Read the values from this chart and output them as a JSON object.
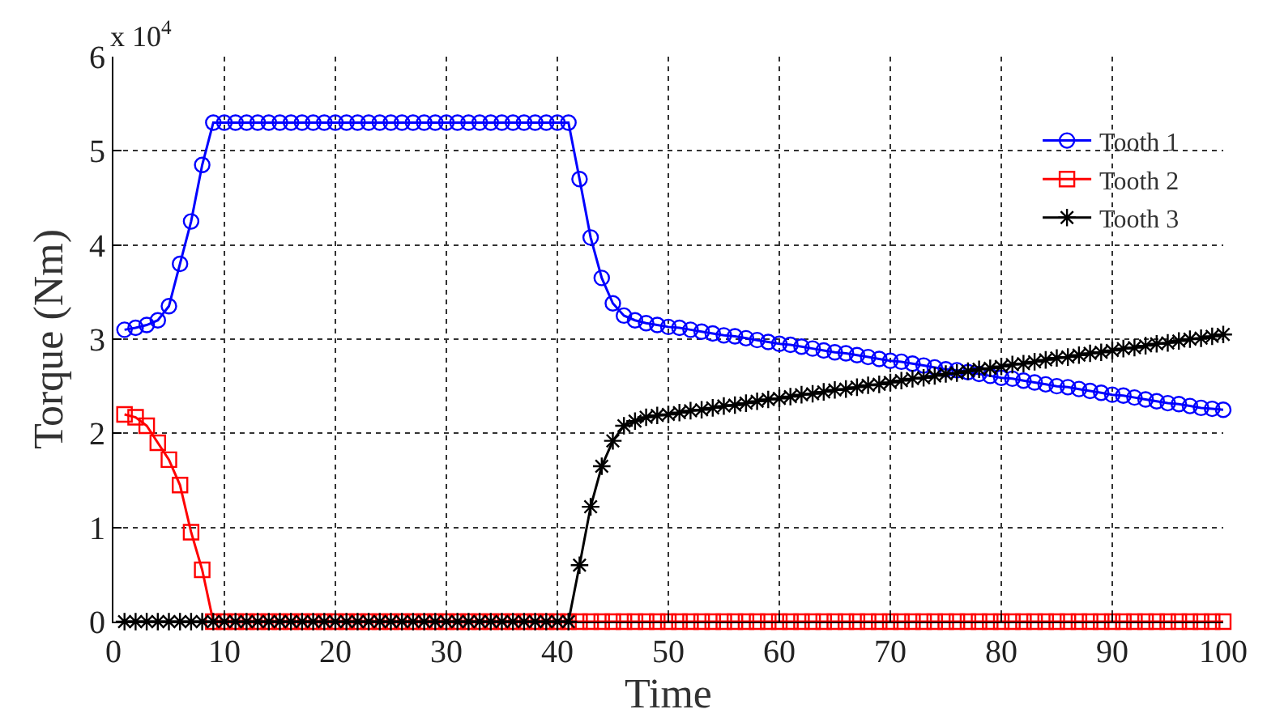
{
  "chart_data": {
    "type": "line",
    "xlabel": "Time",
    "ylabel": "Torque (Nm)",
    "annotations": [
      "x 10$^{4}$"
    ],
    "x": [
      1,
      2,
      3,
      4,
      5,
      6,
      7,
      8,
      9,
      10,
      11,
      12,
      13,
      14,
      15,
      16,
      17,
      18,
      19,
      20,
      21,
      22,
      23,
      24,
      25,
      26,
      27,
      28,
      29,
      30,
      31,
      32,
      33,
      34,
      35,
      36,
      37,
      38,
      39,
      40,
      41,
      42,
      43,
      44,
      45,
      46,
      47,
      48,
      49,
      50,
      51,
      52,
      53,
      54,
      55,
      56,
      57,
      58,
      59,
      60,
      61,
      62,
      63,
      64,
      65,
      66,
      67,
      68,
      69,
      70,
      71,
      72,
      73,
      74,
      75,
      76,
      77,
      78,
      79,
      80,
      81,
      82,
      83,
      84,
      85,
      86,
      87,
      88,
      89,
      90,
      91,
      92,
      93,
      94,
      95,
      96,
      97,
      98,
      99,
      100
    ],
    "series": [
      {
        "name": "Tooth 1",
        "color": "#0000ff",
        "marker": "circle",
        "values": [
          3.1,
          3.12,
          3.15,
          3.2,
          3.35,
          3.8,
          4.25,
          4.85,
          5.3,
          5.3,
          5.3,
          5.3,
          5.3,
          5.3,
          5.3,
          5.3,
          5.3,
          5.3,
          5.3,
          5.3,
          5.3,
          5.3,
          5.3,
          5.3,
          5.3,
          5.3,
          5.3,
          5.3,
          5.3,
          5.3,
          5.3,
          5.3,
          5.3,
          5.3,
          5.3,
          5.3,
          5.3,
          5.3,
          5.3,
          5.3,
          5.3,
          4.7,
          4.08,
          3.65,
          3.38,
          3.25,
          3.2,
          3.17,
          3.15,
          3.13,
          3.12,
          3.1,
          3.08,
          3.06,
          3.04,
          3.03,
          3.01,
          2.99,
          2.97,
          2.95,
          2.94,
          2.92,
          2.9,
          2.88,
          2.86,
          2.85,
          2.83,
          2.81,
          2.79,
          2.77,
          2.76,
          2.74,
          2.72,
          2.7,
          2.68,
          2.67,
          2.65,
          2.63,
          2.61,
          2.59,
          2.58,
          2.56,
          2.54,
          2.52,
          2.5,
          2.49,
          2.47,
          2.45,
          2.43,
          2.41,
          2.4,
          2.38,
          2.36,
          2.34,
          2.32,
          2.31,
          2.29,
          2.27,
          2.26,
          2.25
        ]
      },
      {
        "name": "Tooth 2",
        "color": "#ff0000",
        "marker": "square",
        "values": [
          2.2,
          2.17,
          2.08,
          1.9,
          1.72,
          1.45,
          0.95,
          0.55,
          0,
          0,
          0,
          0,
          0,
          0,
          0,
          0,
          0,
          0,
          0,
          0,
          0,
          0,
          0,
          0,
          0,
          0,
          0,
          0,
          0,
          0,
          0,
          0,
          0,
          0,
          0,
          0,
          0,
          0,
          0,
          0,
          0,
          0,
          0,
          0,
          0,
          0,
          0,
          0,
          0,
          0,
          0,
          0,
          0,
          0,
          0,
          0,
          0,
          0,
          0,
          0,
          0,
          0,
          0,
          0,
          0,
          0,
          0,
          0,
          0,
          0,
          0,
          0,
          0,
          0,
          0,
          0,
          0,
          0,
          0,
          0,
          0,
          0,
          0,
          0,
          0,
          0,
          0,
          0,
          0,
          0,
          0,
          0,
          0,
          0,
          0,
          0,
          0,
          0,
          0,
          0
        ]
      },
      {
        "name": "Tooth 3",
        "color": "#000000",
        "marker": "cross",
        "values": [
          0,
          0,
          0,
          0,
          0,
          0,
          0,
          0,
          0,
          0,
          0,
          0,
          0,
          0,
          0,
          0,
          0,
          0,
          0,
          0,
          0,
          0,
          0,
          0,
          0,
          0,
          0,
          0,
          0,
          0,
          0,
          0,
          0,
          0,
          0,
          0,
          0,
          0,
          0,
          0,
          0,
          0.6,
          1.22,
          1.65,
          1.92,
          2.08,
          2.13,
          2.17,
          2.19,
          2.2,
          2.22,
          2.24,
          2.25,
          2.27,
          2.29,
          2.3,
          2.32,
          2.34,
          2.36,
          2.37,
          2.39,
          2.41,
          2.42,
          2.44,
          2.46,
          2.47,
          2.49,
          2.51,
          2.52,
          2.54,
          2.56,
          2.58,
          2.59,
          2.61,
          2.63,
          2.64,
          2.66,
          2.68,
          2.69,
          2.71,
          2.73,
          2.74,
          2.76,
          2.78,
          2.8,
          2.81,
          2.83,
          2.85,
          2.86,
          2.88,
          2.9,
          2.91,
          2.93,
          2.95,
          2.96,
          2.98,
          3.0,
          3.01,
          3.03,
          3.05
        ]
      }
    ],
    "xlim": [
      0,
      100
    ],
    "xticks": [
      0,
      10,
      20,
      30,
      40,
      50,
      60,
      70,
      80,
      90,
      100
    ],
    "ylim": [
      0,
      6
    ],
    "yticks": [
      0,
      1,
      2,
      3,
      4,
      5,
      6
    ],
    "grid": true,
    "legend": "top right",
    "line_style": "solid"
  }
}
